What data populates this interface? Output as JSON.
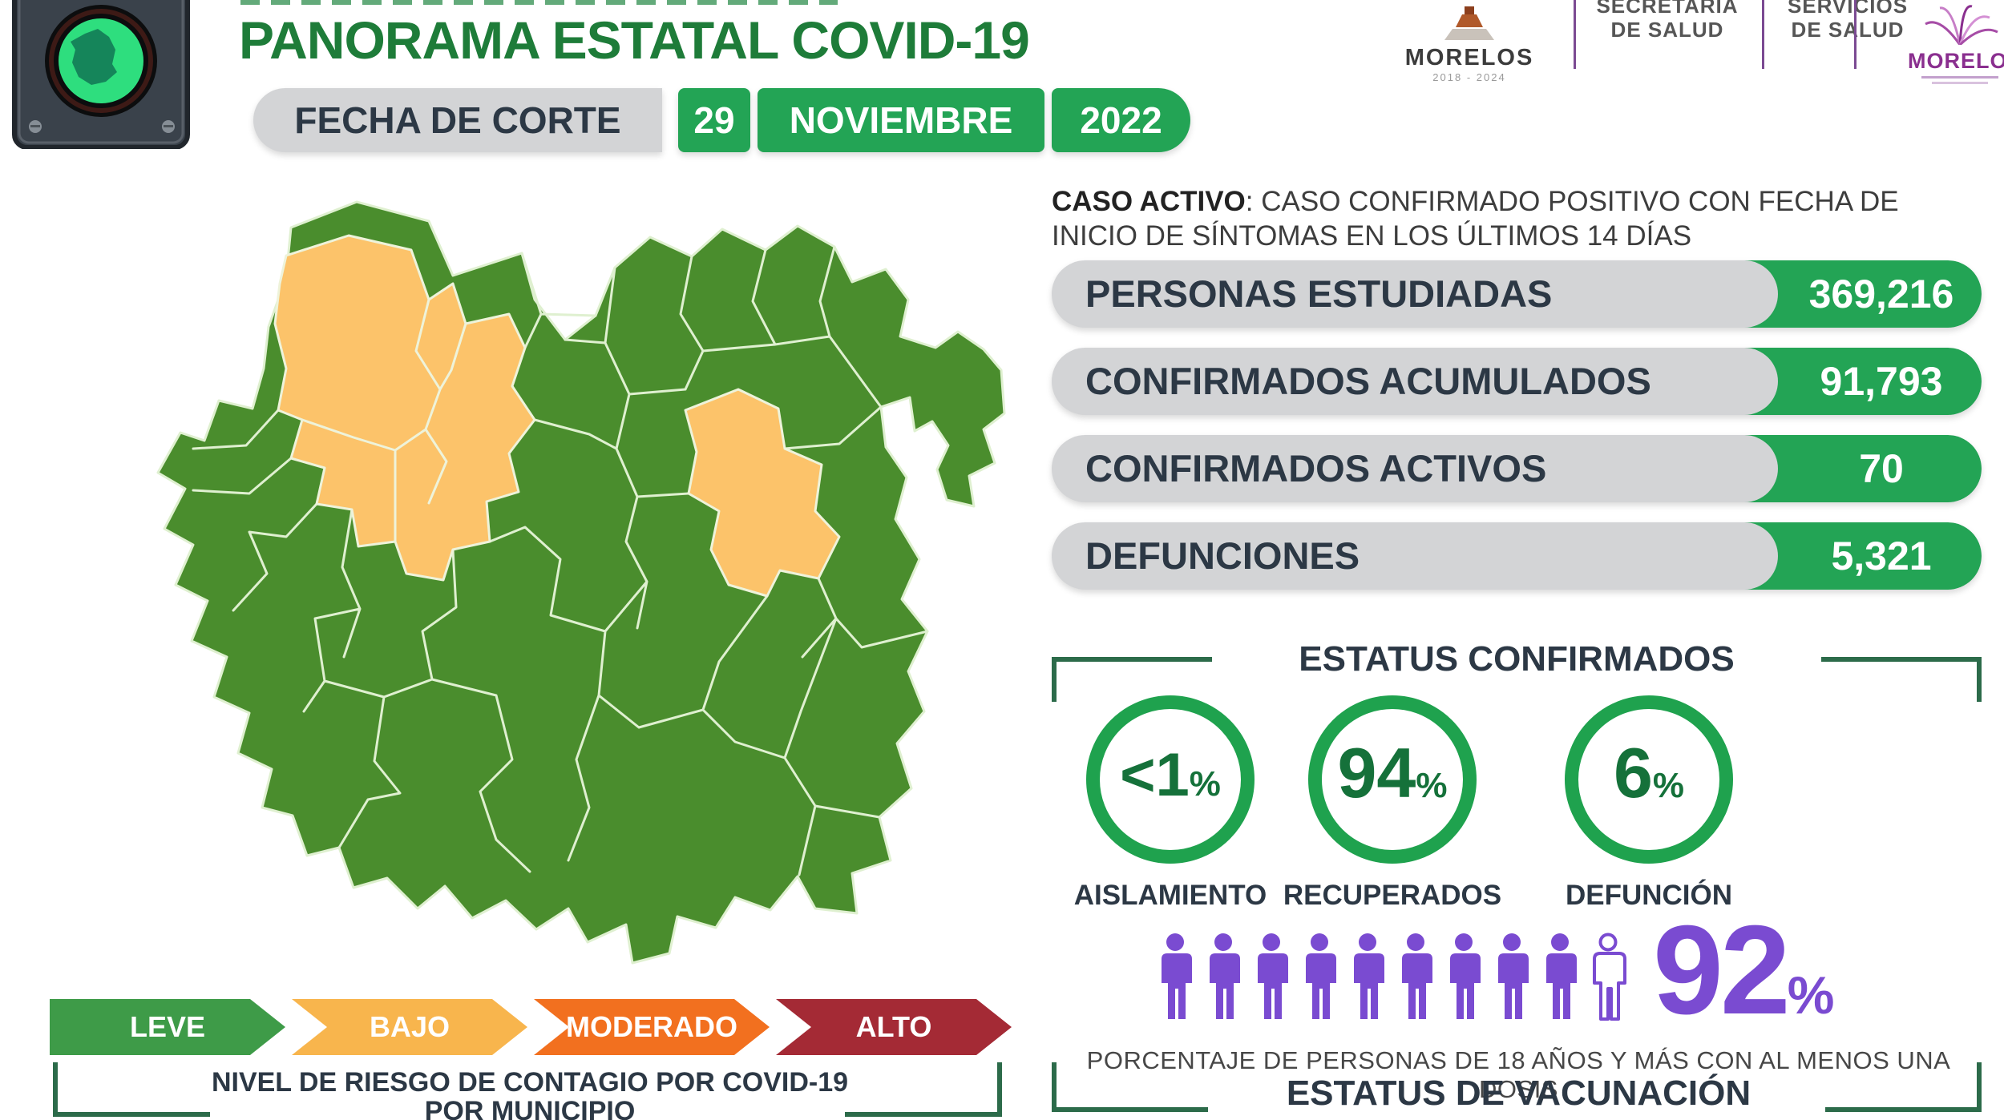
{
  "header": {
    "title": "PANORAMA ESTATAL COVID-19",
    "date": {
      "label": "FECHA DE CORTE",
      "day": "29",
      "month": "NOVIEMBRE",
      "year": "2022"
    },
    "logos": {
      "gobierno": {
        "name": "MORELOS",
        "period": "2018 - 2024"
      },
      "secretaria": {
        "line1": "SECRETARÍA",
        "line2": "DE SALUD"
      },
      "servicios": {
        "line1": "SERVICIOS",
        "line2": "DE SALUD"
      },
      "morelos_brand": {
        "name": "MORELOS"
      }
    }
  },
  "definition": {
    "bold": "CASO ACTIVO",
    "rest_line1": ": CASO CONFIRMADO POSITIVO CON FECHA DE",
    "rest_line2": "INICIO DE SÍNTOMAS EN LOS ÚLTIMOS 14 DÍAS"
  },
  "stats": [
    {
      "label": "PERSONAS ESTUDIADAS",
      "value": "369,216"
    },
    {
      "label": "CONFIRMADOS ACUMULADOS",
      "value": "91,793"
    },
    {
      "label": "CONFIRMADOS ACTIVOS",
      "value": "70"
    },
    {
      "label": "DEFUNCIONES",
      "value": "5,321"
    }
  ],
  "status_section": {
    "title": "ESTATUS CONFIRMADOS",
    "items": [
      {
        "value": "<1",
        "suffix": "%",
        "label": "AISLAMIENTO"
      },
      {
        "value": "94",
        "suffix": "%",
        "label": "RECUPERADOS"
      },
      {
        "value": "6",
        "suffix": "%",
        "label": "DEFUNCIÓN"
      }
    ]
  },
  "vaccination": {
    "percent": "92",
    "percent_suffix": "%",
    "filled_icons": 9,
    "total_icons": 10,
    "caption": "PORCENTAJE DE PERSONAS DE 18 AÑOS Y MÁS CON AL MENOS UNA DOSIS",
    "title": "ESTATUS DE VACUNACIÓN"
  },
  "legend": {
    "levels": [
      {
        "label": "LEVE",
        "color": "#3e9b48"
      },
      {
        "label": "BAJO",
        "color": "#f8b54d"
      },
      {
        "label": "MODERADO",
        "color": "#f2701f"
      },
      {
        "label": "ALTO",
        "color": "#a42a35"
      }
    ],
    "caption_prefix": "NIVEL DE RIESGO DE CONTAGIO POR ",
    "caption_bold": "COVID-19",
    "caption_line2": "POR MUNICIPIO"
  },
  "map": {
    "description": "Mapa de municipios de Morelos por nivel de riesgo",
    "green": "#4a8d2d",
    "orange": "#fcc36a",
    "border": "#dff0d0"
  },
  "colors": {
    "title_green": "#1e7c39",
    "accent_green": "#23a455",
    "ring_green": "#1fa24e",
    "dark_green_text": "#15713a",
    "bracket_green": "#2c6b4a",
    "navy": "#2c3845",
    "purple": "#7a4bd1",
    "pill_gray": "#d3d4d6"
  }
}
